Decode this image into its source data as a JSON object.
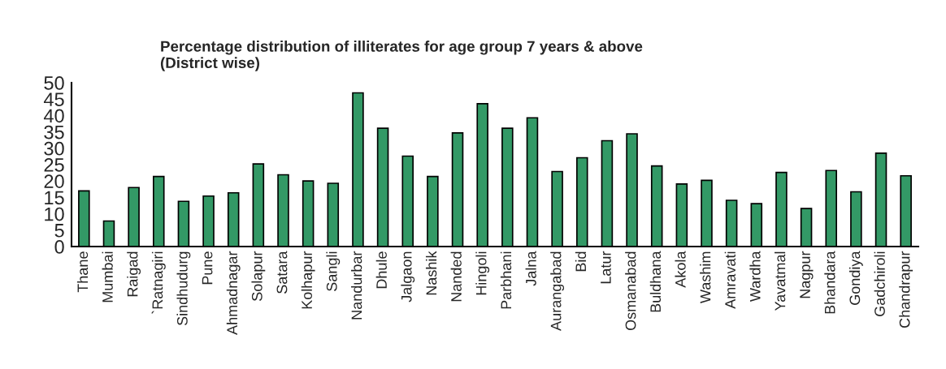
{
  "chart_data": {
    "type": "bar",
    "title": "Percentage distribution of illiterates for age group 7 years & above\n(District wise)",
    "categories": [
      "Thane",
      "Mumbai",
      "Raigad",
      "`Ratnagiri",
      "Sindhudurg",
      "Pune",
      "Ahmadnagar",
      "Solapur",
      "Satara",
      "Kolhapur",
      "Sangli",
      "Nandurbar",
      "Dhule",
      "Jalgaon",
      "Nashik",
      "Nanded",
      "Hingoli",
      "Parbhani",
      "Jalna",
      "Aurangabad",
      "Bid",
      "Latur",
      "Osmanabad",
      "Buldhana",
      "Akola",
      "Washim",
      "Amravati",
      "Wardha",
      "Yavatmal",
      "Nagpur",
      "Bhandara",
      "Gondiya",
      "Gadchiroli",
      "Chandrapur"
    ],
    "values": [
      17.0,
      7.8,
      18.0,
      21.4,
      13.8,
      15.4,
      16.4,
      25.2,
      21.9,
      20.0,
      19.3,
      46.9,
      36.1,
      27.6,
      21.4,
      34.7,
      43.6,
      36.1,
      39.3,
      22.9,
      27.1,
      32.3,
      34.4,
      24.6,
      19.1,
      20.2,
      14.1,
      13.1,
      22.6,
      11.6,
      23.2,
      16.7,
      28.5,
      21.6
    ],
    "color": "#339966",
    "ylim": [
      0,
      50
    ],
    "yticks": [
      0,
      5,
      10,
      15,
      20,
      25,
      30,
      35,
      40,
      45,
      50
    ],
    "grid": false,
    "legend": false
  }
}
